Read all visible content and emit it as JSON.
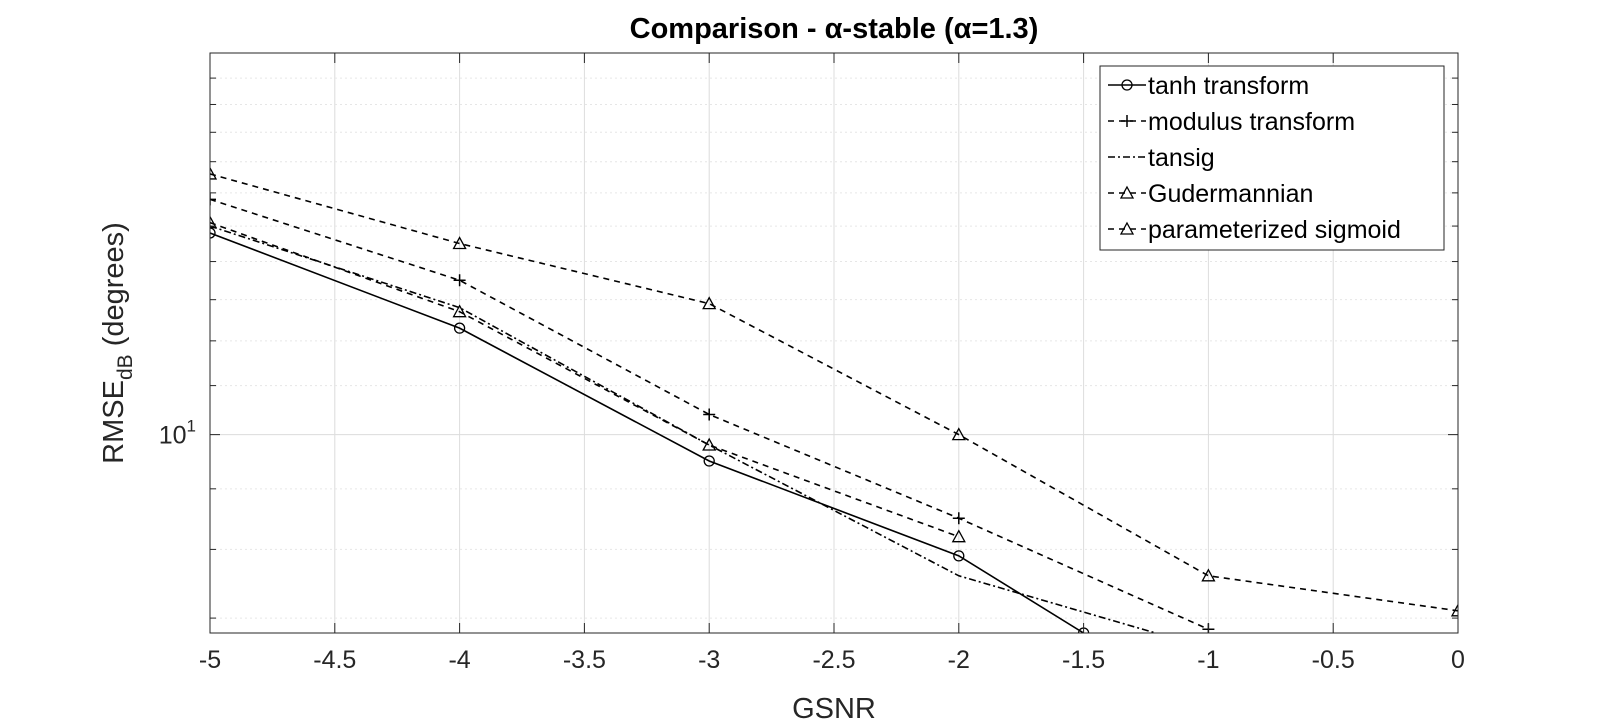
{
  "chart_data": {
    "type": "line",
    "title": "Comparison - α-stable (α=1.3)",
    "xlabel": "GSNR",
    "ylabel": {
      "main": "RMSE",
      "subscript": "dB",
      "suffix": " (degrees)"
    },
    "xlim": [
      -5,
      0
    ],
    "ylim": [
      6.8,
      21
    ],
    "yscale": "log",
    "grid": true,
    "minor_grid": true,
    "legend_position": "top-right",
    "x_ticks": [
      -5,
      -4.5,
      -4,
      -3.5,
      -3,
      -2.5,
      -2,
      -1.5,
      -1,
      -0.5,
      0
    ],
    "x_tick_labels": [
      "-5",
      "-4.5",
      "-4",
      "-3.5",
      "-3",
      "-2.5",
      "-2",
      "-1.5",
      "-1",
      "-0.5",
      "0"
    ],
    "y_tick_labels": [
      {
        "value": 10,
        "base": "10",
        "exponent": "1"
      }
    ],
    "y_minor_ticks": [
      7,
      8,
      9,
      20
    ],
    "series": [
      {
        "name": "tanh transform",
        "marker": "circle",
        "dash": "solid",
        "x": [
          -5,
          -4,
          -3,
          -2,
          -1.5
        ],
        "y": [
          14.8,
          12.3,
          9.5,
          7.9,
          6.8
        ]
      },
      {
        "name": "modulus transform",
        "marker": "plus",
        "dash": "dashed",
        "x": [
          -5,
          -4,
          -3,
          -2,
          -1
        ],
        "y": [
          15.8,
          13.5,
          10.4,
          8.5,
          6.85
        ]
      },
      {
        "name": "tansig",
        "marker": "none",
        "dash": "dashdot",
        "x": [
          -5,
          -4,
          -3,
          -2,
          -1
        ],
        "y": [
          15,
          12.8,
          9.8,
          7.6,
          6.6
        ]
      },
      {
        "name": "Gudermannian",
        "marker": "triangle",
        "dash": "dashed",
        "x": [
          -5,
          -4,
          -3,
          -2
        ],
        "y": [
          15.1,
          12.7,
          9.8,
          8.2
        ]
      },
      {
        "name": "parameterized sigmoid",
        "marker": "triangle",
        "dash": "dashed",
        "x": [
          -5,
          -4,
          -3,
          -2,
          -1,
          0
        ],
        "y": [
          16.6,
          14.5,
          12.9,
          10,
          7.6,
          7.1
        ]
      }
    ]
  }
}
